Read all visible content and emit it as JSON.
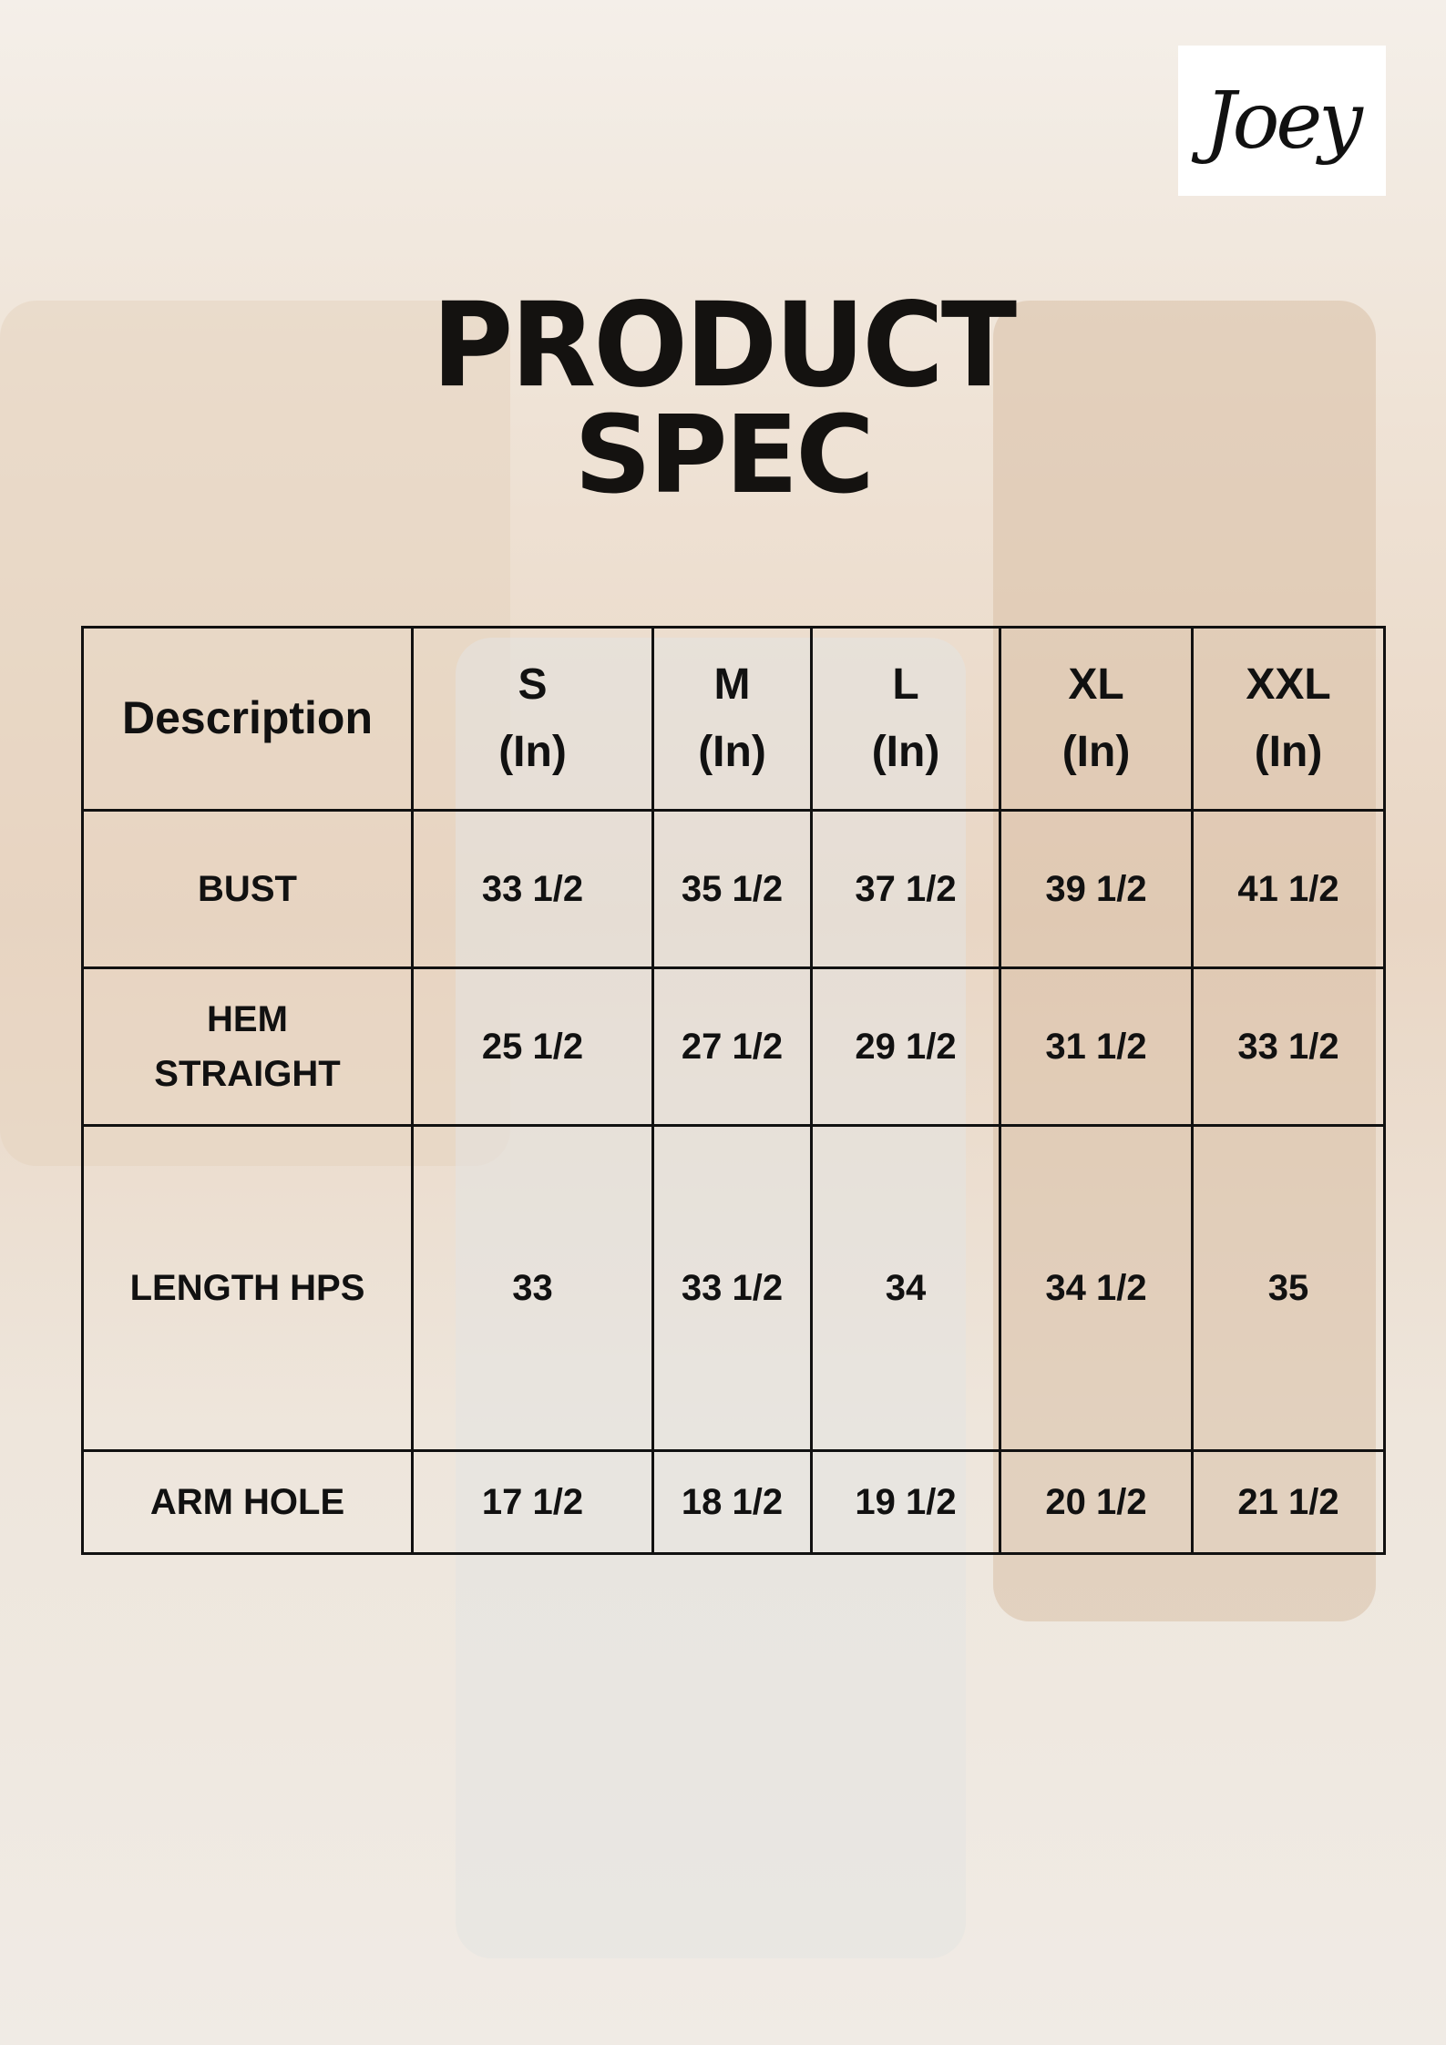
{
  "logo": {
    "text": "Joey"
  },
  "title": {
    "line1": "PRODUCT",
    "line2": "SPEC"
  },
  "table": {
    "headers": [
      {
        "size": "Description",
        "unit": ""
      },
      {
        "size": "S",
        "unit": "(In)"
      },
      {
        "size": "M",
        "unit": "(In)"
      },
      {
        "size": "L",
        "unit": "(In)"
      },
      {
        "size": "XL",
        "unit": "(In)"
      },
      {
        "size": "XXL",
        "unit": "(In)"
      }
    ],
    "rows": [
      {
        "label": "BUST",
        "values": [
          "33 1/2",
          "35 1/2",
          "37 1/2",
          "39 1/2",
          "41 1/2"
        ]
      },
      {
        "label": "HEM STRAIGHT",
        "values": [
          "25 1/2",
          "27 1/2",
          "29 1/2",
          "31 1/2",
          "33 1/2"
        ]
      },
      {
        "label": "LENGTH HPS",
        "values": [
          "33",
          "33 1/2",
          "34",
          "34 1/2",
          "35"
        ]
      },
      {
        "label": "ARM HOLE",
        "values": [
          "17 1/2",
          "18 1/2",
          "19 1/2",
          "20 1/2",
          "21 1/2"
        ]
      }
    ]
  }
}
